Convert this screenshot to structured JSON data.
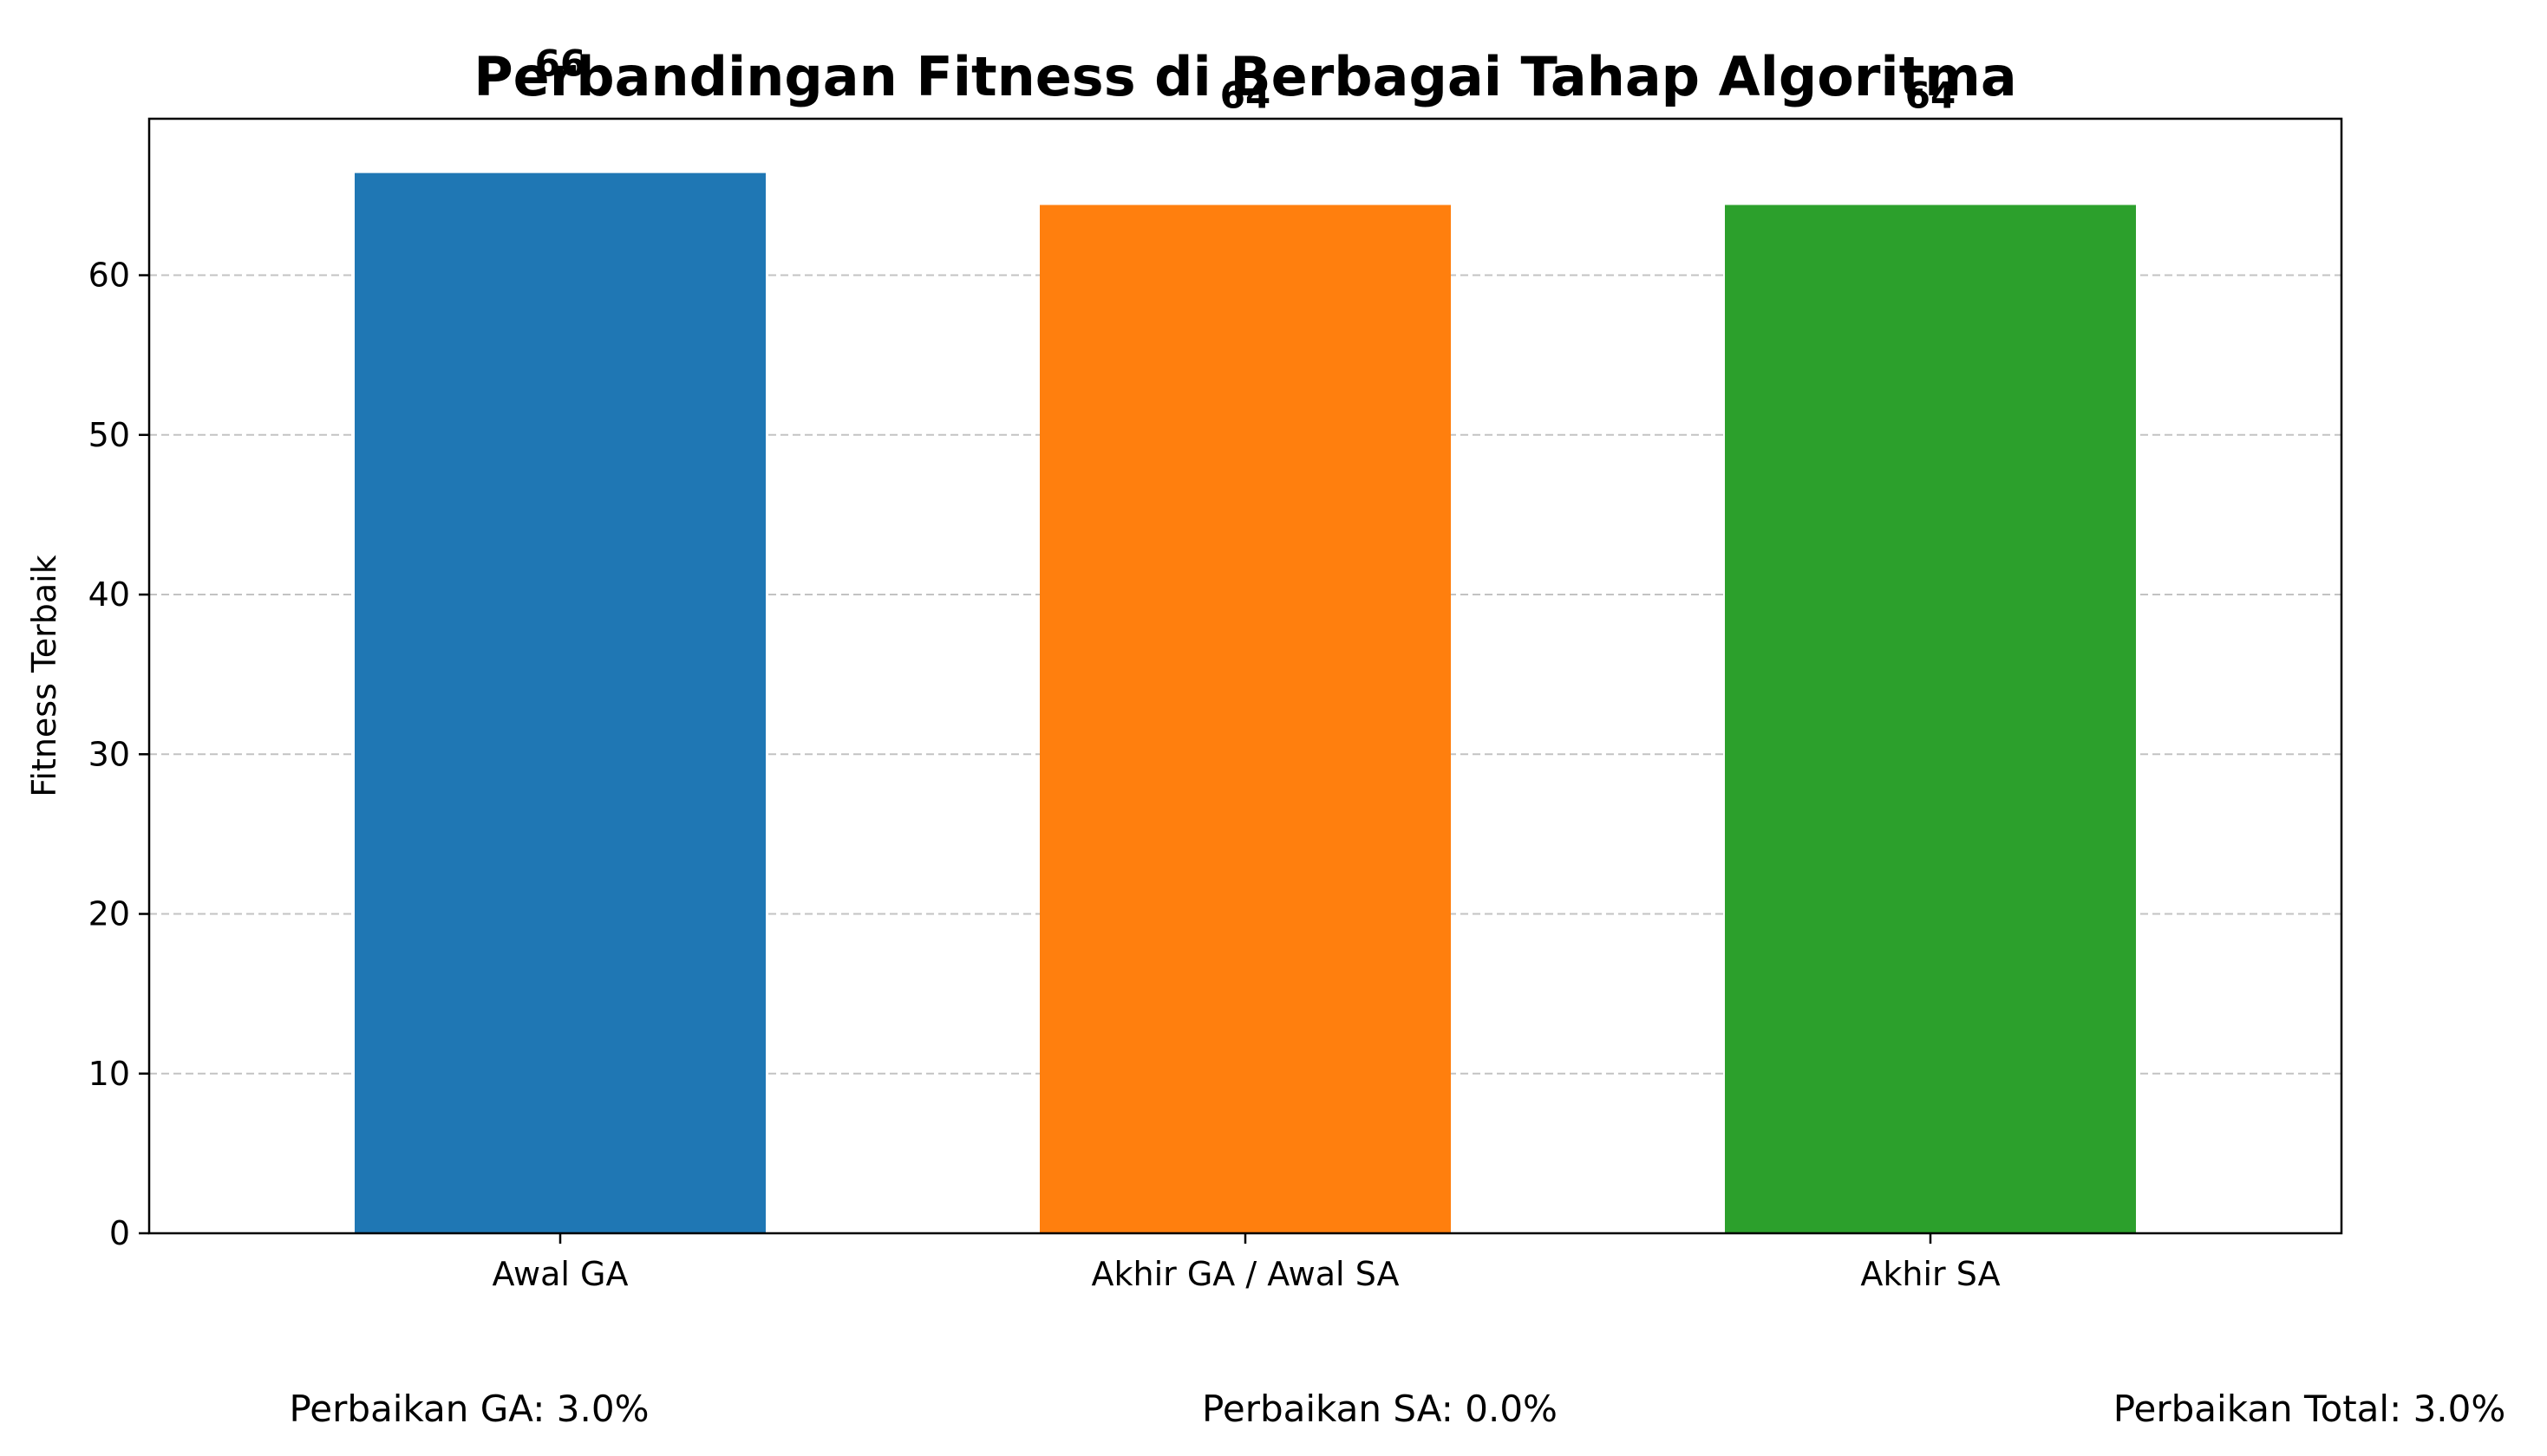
{
  "chart_data": {
    "type": "bar",
    "title": "Perbandingan Fitness di Berbagai Tahap Algoritma",
    "xlabel": "",
    "ylabel": "Fitness Terbaik",
    "categories": [
      "Awal GA",
      "Akhir GA / Awal SA",
      "Akhir SA"
    ],
    "values": [
      66.4,
      64.4,
      64.4
    ],
    "value_labels": [
      "66",
      "64",
      "64"
    ],
    "colors": [
      "#1f77b4",
      "#ff7f0e",
      "#2ca02c"
    ],
    "ylim": [
      0,
      69.8
    ],
    "yticks": [
      0,
      10,
      20,
      30,
      40,
      50,
      60
    ],
    "grid": "y-dashed",
    "legend": "none"
  },
  "footer": {
    "ga_improvement": "Perbaikan GA: 3.0%",
    "sa_improvement": "Perbaikan SA: 0.0%",
    "total_improvement": "Perbaikan Total: 3.0%"
  }
}
